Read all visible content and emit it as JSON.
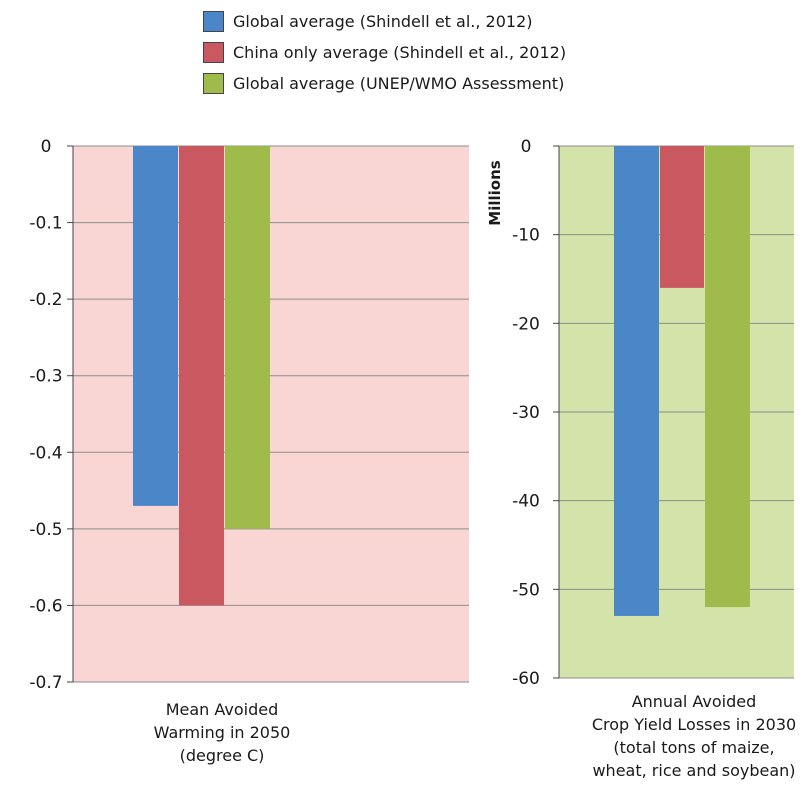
{
  "legend": [
    {
      "label": "Global average (Shindell et al., 2012)",
      "color": "#4a86c8"
    },
    {
      "label": "China only average (Shindell et al., 2012)",
      "color": "#c95860"
    },
    {
      "label": "Global average (UNEP/WMO Assessment)",
      "color": "#9fbb4b"
    }
  ],
  "chart_data": [
    {
      "type": "bar",
      "background": "#f9d5d3",
      "xlabel": [
        "Mean Avoided",
        "Warming in 2050",
        "(degree C)"
      ],
      "ylabel": "",
      "ylim": [
        -0.7,
        0
      ],
      "yticks": [
        0,
        -0.1,
        -0.2,
        -0.3,
        -0.4,
        -0.5,
        -0.6,
        -0.7
      ],
      "ytick_labels": [
        "0",
        "-0.1",
        "-0.2",
        "-0.3",
        "-0.4",
        "-0.5",
        "-0.6",
        "-0.7"
      ],
      "grid": true,
      "series": [
        {
          "name": "Global average (Shindell et al., 2012)",
          "value": -0.47,
          "color": "#4a86c8"
        },
        {
          "name": "China only average (Shindell et al., 2012)",
          "value": -0.6,
          "color": "#c95860"
        },
        {
          "name": "Global average (UNEP/WMO Assessment)",
          "value": -0.5,
          "color": "#9fbb4b"
        }
      ]
    },
    {
      "type": "bar",
      "background": "#d3e3a9",
      "xlabel": [
        "Annual Avoided",
        "Crop Yield Losses in 2030",
        "(total tons of maize,",
        "wheat, rice and soybean)"
      ],
      "ylabel": "Millions",
      "ylim": [
        -60,
        0
      ],
      "yticks": [
        0,
        -10,
        -20,
        -30,
        -40,
        -50,
        -60
      ],
      "ytick_labels": [
        "0",
        "-10",
        "-20",
        "-30",
        "-40",
        "-50",
        "-60"
      ],
      "grid": true,
      "series": [
        {
          "name": "Global average (Shindell et al., 2012)",
          "value": -53,
          "color": "#4a86c8"
        },
        {
          "name": "China only average (Shindell et al., 2012)",
          "value": -16,
          "color": "#c95860"
        },
        {
          "name": "Global average (UNEP/WMO Assessment)",
          "value": -52,
          "color": "#9fbb4b"
        }
      ]
    }
  ]
}
